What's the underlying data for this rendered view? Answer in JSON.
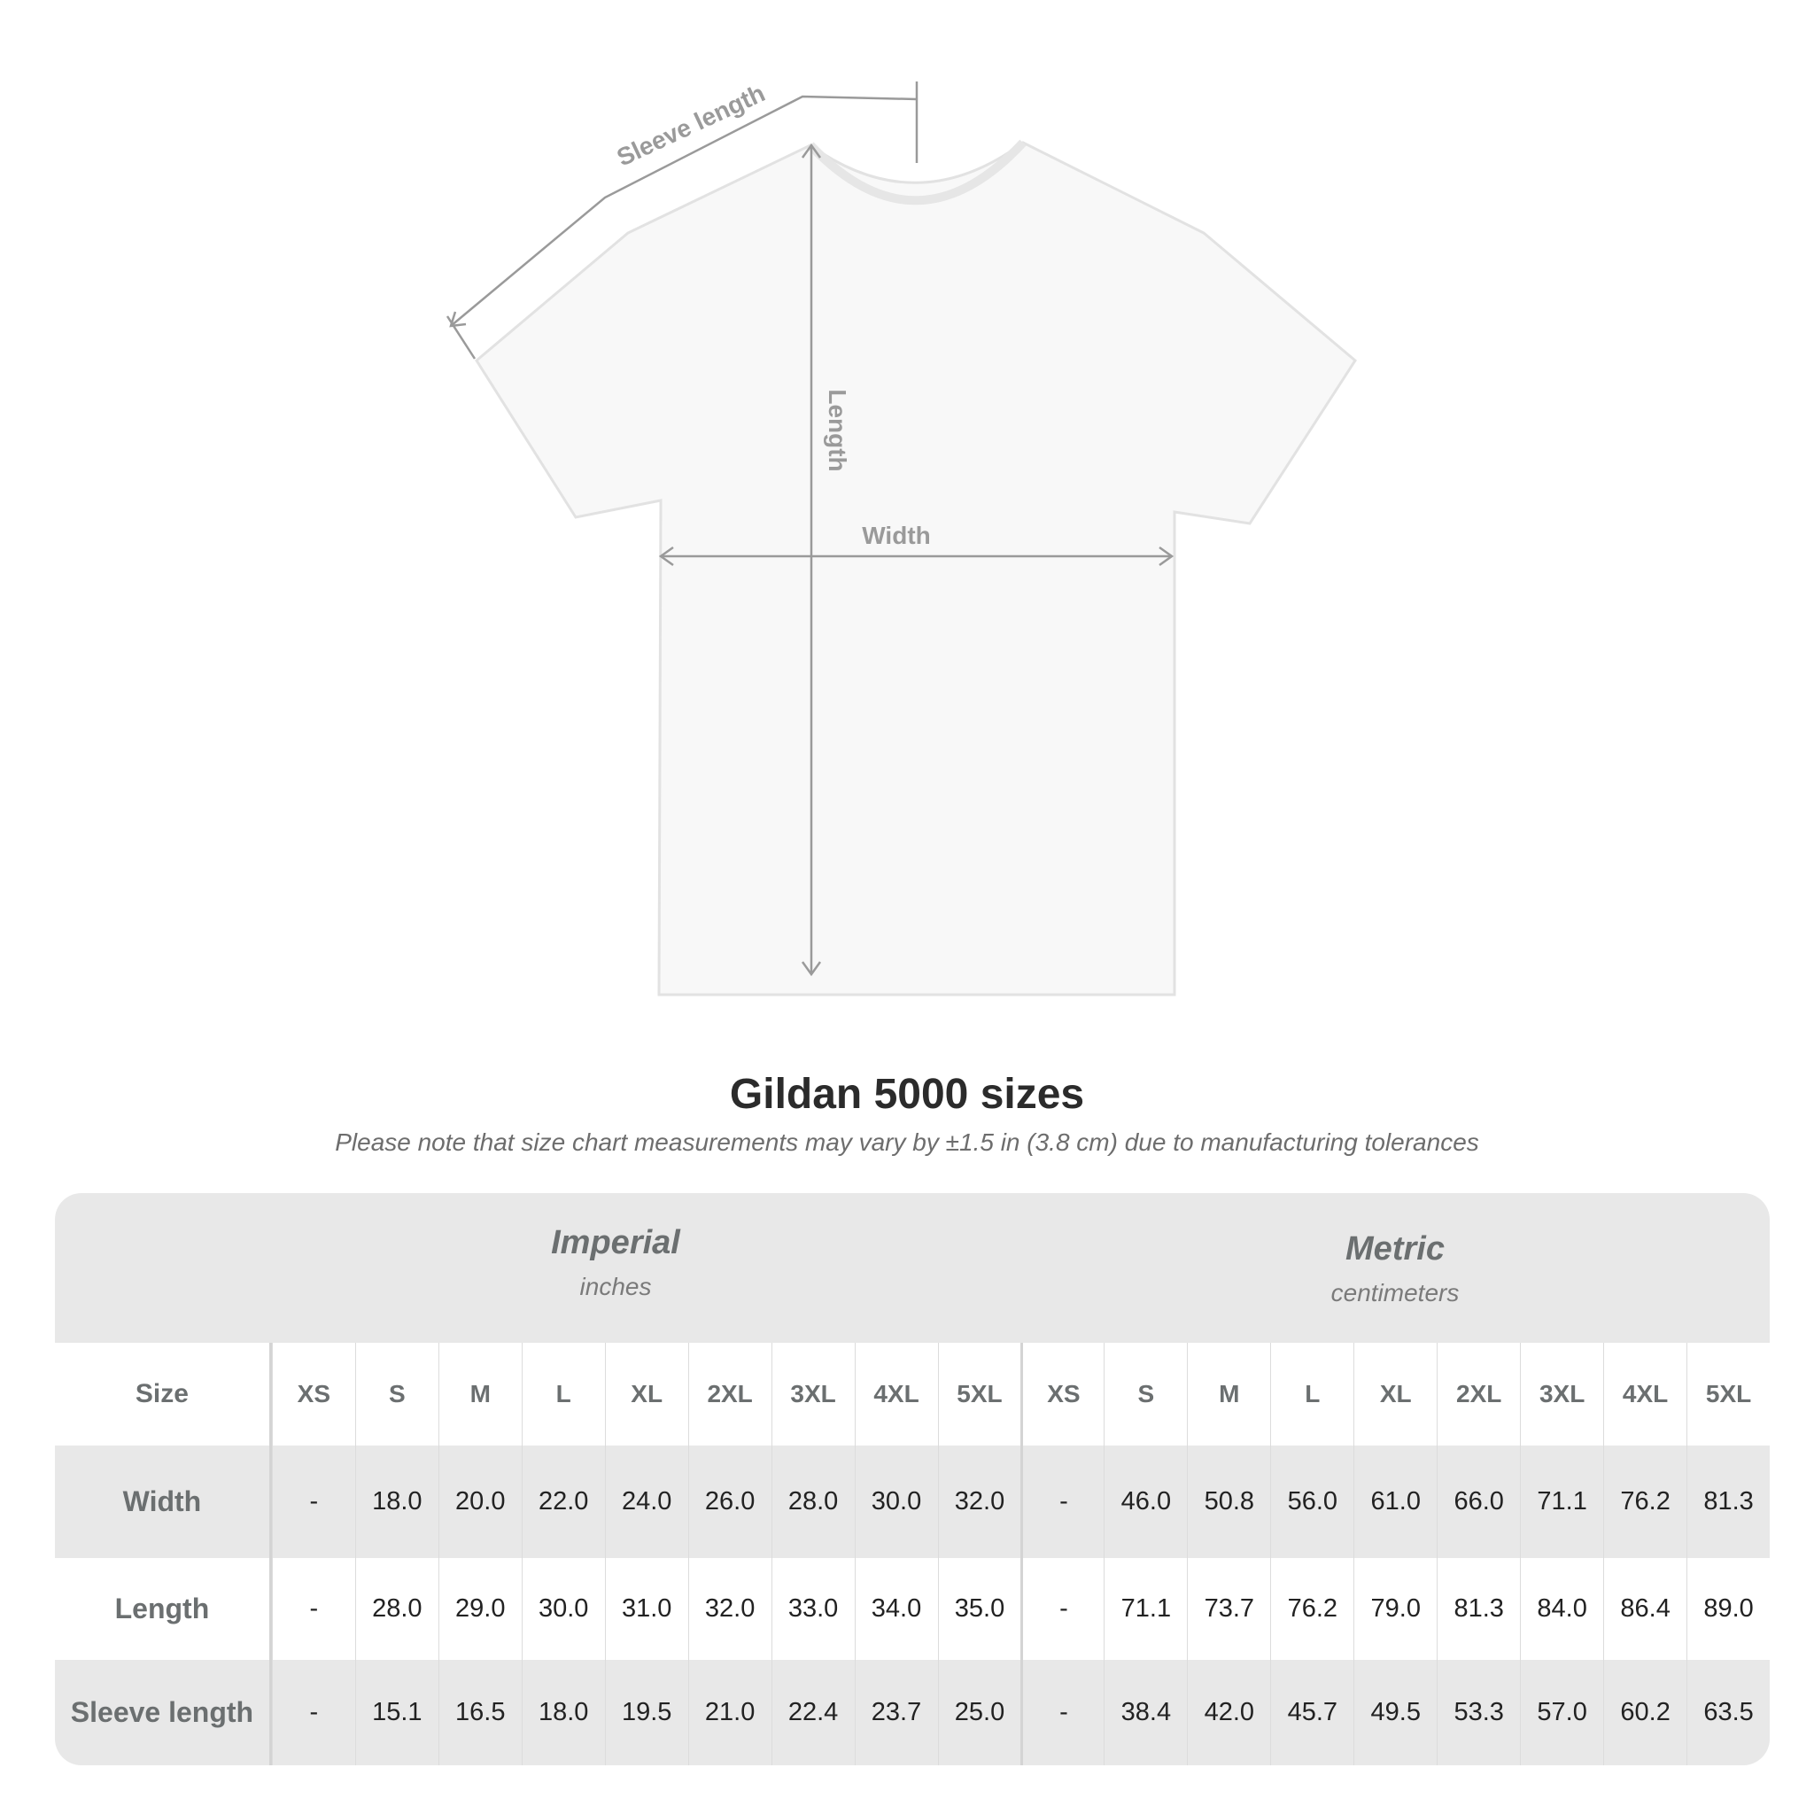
{
  "diagram": {
    "labels": {
      "sleeve": "Sleeve length",
      "length": "Length",
      "width": "Width"
    },
    "colors": {
      "shirt": "#f8f8f8",
      "outline": "#e2e2e2",
      "measure": "#9a9a9a"
    }
  },
  "title": "Gildan 5000 sizes",
  "note": "Please note that size chart measurements may vary by ±1.5 in (3.8 cm) due to manufacturing tolerances",
  "table": {
    "imperial": {
      "name": "Imperial",
      "unit": "inches"
    },
    "metric": {
      "name": "Metric",
      "unit": "centimeters"
    },
    "size_label": "Size",
    "sizes": [
      "XS",
      "S",
      "M",
      "L",
      "XL",
      "2XL",
      "3XL",
      "4XL",
      "5XL"
    ],
    "rows": [
      {
        "label": "Width",
        "imperial": [
          "-",
          "18.0",
          "20.0",
          "22.0",
          "24.0",
          "26.0",
          "28.0",
          "30.0",
          "32.0"
        ],
        "metric": [
          "-",
          "46.0",
          "50.8",
          "56.0",
          "61.0",
          "66.0",
          "71.1",
          "76.2",
          "81.3"
        ]
      },
      {
        "label": "Length",
        "imperial": [
          "-",
          "28.0",
          "29.0",
          "30.0",
          "31.0",
          "32.0",
          "33.0",
          "34.0",
          "35.0"
        ],
        "metric": [
          "-",
          "71.1",
          "73.7",
          "76.2",
          "79.0",
          "81.3",
          "84.0",
          "86.4",
          "89.0"
        ]
      },
      {
        "label": "Sleeve length",
        "imperial": [
          "-",
          "15.1",
          "16.5",
          "18.0",
          "19.5",
          "21.0",
          "22.4",
          "23.7",
          "25.0"
        ],
        "metric": [
          "-",
          "38.4",
          "42.0",
          "45.7",
          "49.5",
          "53.3",
          "57.0",
          "60.2",
          "63.5"
        ]
      }
    ],
    "colors": {
      "band": "#e8e8e8",
      "header_text": "#6b6f70"
    }
  }
}
